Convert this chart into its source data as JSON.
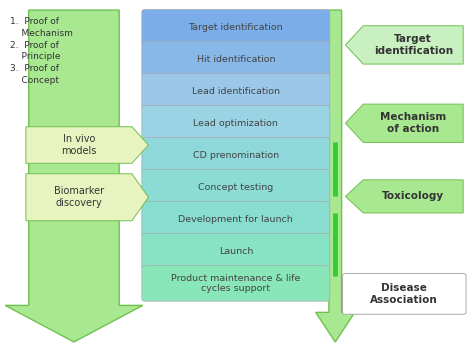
{
  "pipeline_steps": [
    "Target identification",
    "Hit identification",
    "Lead identification",
    "Lead optimization",
    "CD prenomination",
    "Concept testing",
    "Development for launch",
    "Launch",
    "Product maintenance & life\ncycles support"
  ],
  "step_colors": [
    "#7baee8",
    "#88b8e8",
    "#9bc8e8",
    "#9ad4e4",
    "#8ed8dc",
    "#8adcd4",
    "#88dece",
    "#88e2c4",
    "#88e6b8"
  ],
  "left_text": "1.  Proof of\n    Mechanism\n2.  Proof of\n    Principle\n3.  Proof of\n    Concept",
  "invivo_text": "In vivo\nmodels",
  "biomarker_text": "Biomarker\ndiscovery",
  "r1_text": "Target\nidentification",
  "r2_text": "Mechanism\nof action",
  "r3_text": "Toxicology",
  "r4_text": "Disease\nAssociation",
  "bg_color": "#ffffff",
  "big_arrow_color": "#a8e890",
  "big_arrow_edge": "#70c050",
  "invivo_color": "#e8f4c0",
  "biomarker_color": "#e8f4c0",
  "r_arrow_color": "#a8e890",
  "r_arrow_edge": "#70c050",
  "r1_color": "#c8f0c0",
  "r234_color": "#c8f0c0",
  "r4_color": "#ffffff",
  "green_line_color": "#33cc33",
  "step_text_color": "#444444"
}
